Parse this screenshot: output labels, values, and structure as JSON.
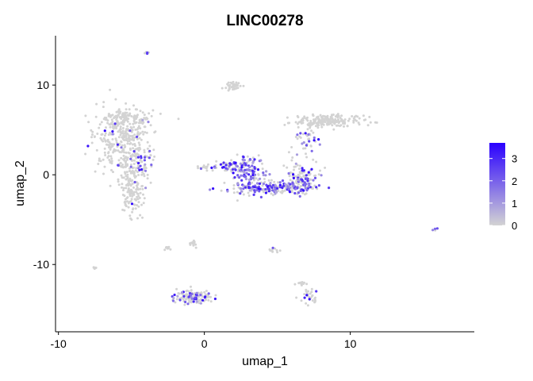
{
  "chart_data": {
    "type": "scatter",
    "title": "LINC00278",
    "xlabel": "umap_1",
    "ylabel": "umap_2",
    "xlim": [
      -10.2,
      18.5
    ],
    "ylim": [
      -17.5,
      15.5
    ],
    "x_ticks": [
      -10,
      0,
      10
    ],
    "x_tick_labels": [
      "-10",
      "0",
      "10"
    ],
    "y_ticks": [
      -10,
      0,
      10
    ],
    "y_tick_labels": [
      "-10",
      "0",
      "10"
    ],
    "grid": false,
    "legend": {
      "placement": "right",
      "type": "colorbar",
      "range": [
        0,
        3.7
      ],
      "ticks": [
        0,
        1,
        2,
        3
      ],
      "tick_labels": [
        "0",
        "1",
        "2",
        "3"
      ],
      "low_color": "#d3d3d3",
      "high_color": "#2a00ff"
    },
    "clusters": [
      {
        "cx": -5.6,
        "cy": 3.8,
        "rx": 1.8,
        "ry": 3.2,
        "n": 340,
        "expr_frac": 0.05
      },
      {
        "cx": -5.0,
        "cy": -1.5,
        "rx": 0.8,
        "ry": 2.6,
        "n": 150,
        "expr_frac": 0.03
      },
      {
        "cx": -5.2,
        "cy": 6.4,
        "rx": 1.6,
        "ry": 0.7,
        "n": 90,
        "expr_frac": 0.0
      },
      {
        "cx": -4.3,
        "cy": 1.6,
        "rx": 0.7,
        "ry": 1.6,
        "n": 40,
        "expr_frac": 0.35
      },
      {
        "cx": 8.3,
        "cy": 6.0,
        "rx": 2.3,
        "ry": 0.6,
        "n": 200,
        "expr_frac": 0.0
      },
      {
        "cx": 7.0,
        "cy": 3.8,
        "rx": 0.8,
        "ry": 1.5,
        "n": 40,
        "expr_frac": 0.3
      },
      {
        "cx": 3.0,
        "cy": 0.4,
        "rx": 1.2,
        "ry": 1.5,
        "n": 110,
        "expr_frac": 0.65
      },
      {
        "cx": 4.6,
        "cy": -1.5,
        "rx": 2.6,
        "ry": 0.6,
        "n": 220,
        "expr_frac": 0.55
      },
      {
        "cx": 6.7,
        "cy": -0.3,
        "rx": 0.9,
        "ry": 1.4,
        "n": 120,
        "expr_frac": 0.4
      },
      {
        "cx": 1.6,
        "cy": 1.0,
        "rx": 0.8,
        "ry": 0.6,
        "n": 40,
        "expr_frac": 0.3
      },
      {
        "cx": 2.0,
        "cy": 9.9,
        "rx": 0.6,
        "ry": 0.4,
        "n": 40,
        "expr_frac": 0.0
      },
      {
        "cx": -0.8,
        "cy": -13.6,
        "rx": 1.1,
        "ry": 0.7,
        "n": 140,
        "expr_frac": 0.25
      },
      {
        "cx": 7.2,
        "cy": -13.5,
        "rx": 0.7,
        "ry": 0.8,
        "n": 30,
        "expr_frac": 0.1
      },
      {
        "cx": 6.7,
        "cy": -12.2,
        "rx": 0.3,
        "ry": 0.3,
        "n": 10,
        "expr_frac": 0.0
      },
      {
        "cx": -2.5,
        "cy": -8.2,
        "rx": 0.2,
        "ry": 0.2,
        "n": 8,
        "expr_frac": 0.1
      },
      {
        "cx": -0.8,
        "cy": -7.6,
        "rx": 0.3,
        "ry": 0.4,
        "n": 12,
        "expr_frac": 0.0
      },
      {
        "cx": 4.8,
        "cy": -8.4,
        "rx": 0.3,
        "ry": 0.3,
        "n": 10,
        "expr_frac": 0.1
      },
      {
        "cx": -3.9,
        "cy": 13.6,
        "rx": 0.1,
        "ry": 0.1,
        "n": 5,
        "expr_frac": 0.2
      },
      {
        "cx": -7.6,
        "cy": -10.4,
        "rx": 0.2,
        "ry": 0.1,
        "n": 6,
        "expr_frac": 0.0
      },
      {
        "cx": 15.9,
        "cy": -6.1,
        "rx": 0.15,
        "ry": 0.1,
        "n": 5,
        "expr_frac": 0.2
      },
      {
        "cx": 0.1,
        "cy": 0.8,
        "rx": 0.6,
        "ry": 0.3,
        "n": 15,
        "expr_frac": 0.2
      }
    ]
  }
}
